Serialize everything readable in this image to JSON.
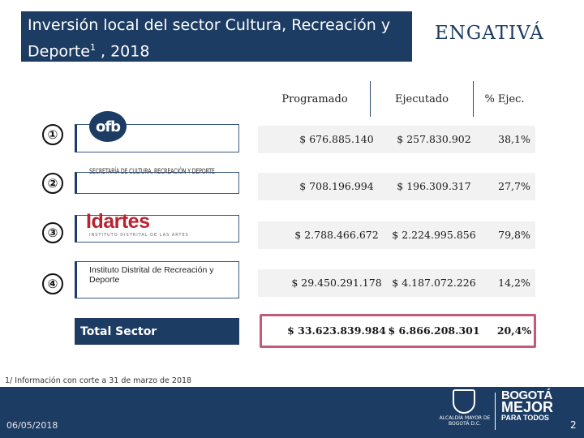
{
  "header": {
    "title": "Inversión local del sector Cultura, Recreación y Deporte",
    "title_sup": "1",
    "title_year": " , 2018",
    "locality": "ENGATIVÁ"
  },
  "columns": {
    "programado": "Programado",
    "ejecutado": "Ejecutado",
    "pct": "% Ejec."
  },
  "entities": [
    {
      "num": "①",
      "logo": "ofb"
    },
    {
      "num": "②",
      "logo": "SECRETARÍA DE CULTURA, RECREACIÓN Y DEPORTE"
    },
    {
      "num": "③",
      "logo": "Idartes",
      "logo_sub": "INSTITUTO DISTRITAL DE LAS ARTES"
    },
    {
      "num": "④",
      "logo": "Instituto Distrital de Recreación y Deporte"
    }
  ],
  "rows": [
    {
      "programado": "$ 676.885.140",
      "ejecutado": "$ 257.830.902",
      "pct": "38,1%"
    },
    {
      "programado": "$ 708.196.994",
      "ejecutado": "$ 196.309.317",
      "pct": "27,7%"
    },
    {
      "programado": "$ 2.788.466.672",
      "ejecutado": "$ 2.224.995.856",
      "pct": "79,8%"
    },
    {
      "programado": "$ 29.450.291.178",
      "ejecutado": "$ 4.187.072.226",
      "pct": "14,2%"
    }
  ],
  "total": {
    "label": "Total Sector",
    "programado": "$ 33.623.839.984",
    "ejecutado": "$ 6.866.208.301",
    "pct": "20,4%"
  },
  "footnote": "1/ Información con corte a 31 de marzo de 2018",
  "footer": {
    "date": "06/05/2018",
    "page": "2",
    "alcaldia": "ALCALDÍA MAYOR DE BOGOTÁ D.C.",
    "bogota_l1": "BOGOTÁ",
    "bogota_l2": "MEJOR",
    "bogota_l3": "PARA TODOS",
    "crest_icon": "city-crest-icon"
  },
  "colors": {
    "navy": "#1c3c63",
    "total_frame": "#c25a78",
    "idartes_red": "#b8232f"
  }
}
